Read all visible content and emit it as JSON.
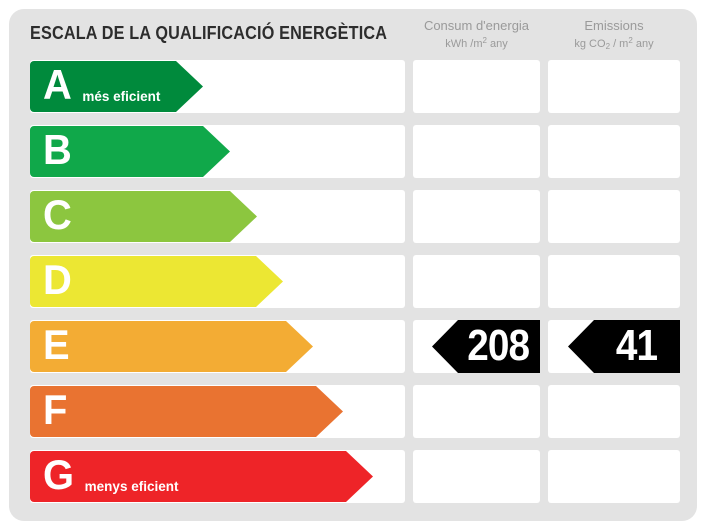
{
  "title": "ESCALA DE LA QUALIFICACIÓ ENERGÈTICA",
  "columns": {
    "consum": {
      "label": "Consum d'energia",
      "unit_prefix": "kWh /m",
      "unit_sup": "2",
      "unit_suffix": " any"
    },
    "emissions": {
      "label": "Emissions",
      "unit_prefix": "kg CO",
      "unit_sub": "2",
      "unit_mid": " / m",
      "unit_sup": "2",
      "unit_suffix": " any"
    }
  },
  "rows": [
    {
      "letter": "A",
      "note": "més eficient",
      "color": "#008a3c"
    },
    {
      "letter": "B",
      "note": "",
      "color": "#10a84a"
    },
    {
      "letter": "C",
      "note": "",
      "color": "#8cc63f"
    },
    {
      "letter": "D",
      "note": "",
      "color": "#ece733"
    },
    {
      "letter": "E",
      "note": "",
      "color": "#f3ac34",
      "consum": "208",
      "emissions": "41"
    },
    {
      "letter": "F",
      "note": "",
      "color": "#e97331"
    },
    {
      "letter": "G",
      "note": "menys eficient",
      "color": "#ee2428"
    }
  ],
  "rating": {
    "letter": "E",
    "consum_value": "208",
    "emissions_value": "41",
    "badge_color": "#000000"
  },
  "chart_data": {
    "type": "bar",
    "title": "ESCALA DE LA QUALIFICACIÓ ENERGÈTICA",
    "categories": [
      "A",
      "B",
      "C",
      "D",
      "E",
      "F",
      "G"
    ],
    "bar_colors": [
      "#008a3c",
      "#10a84a",
      "#8cc63f",
      "#ece733",
      "#f3ac34",
      "#e97331",
      "#ee2428"
    ],
    "bar_relative_lengths": [
      173,
      200,
      227,
      253,
      283,
      313,
      343
    ],
    "annotations": [
      "A = més eficient",
      "G = menys eficient"
    ],
    "rating": "E",
    "values": {
      "consum_kwh_m2_any": 208,
      "emissions_kg_co2_m2_any": 41
    },
    "legend_position": "none",
    "grid": false
  }
}
